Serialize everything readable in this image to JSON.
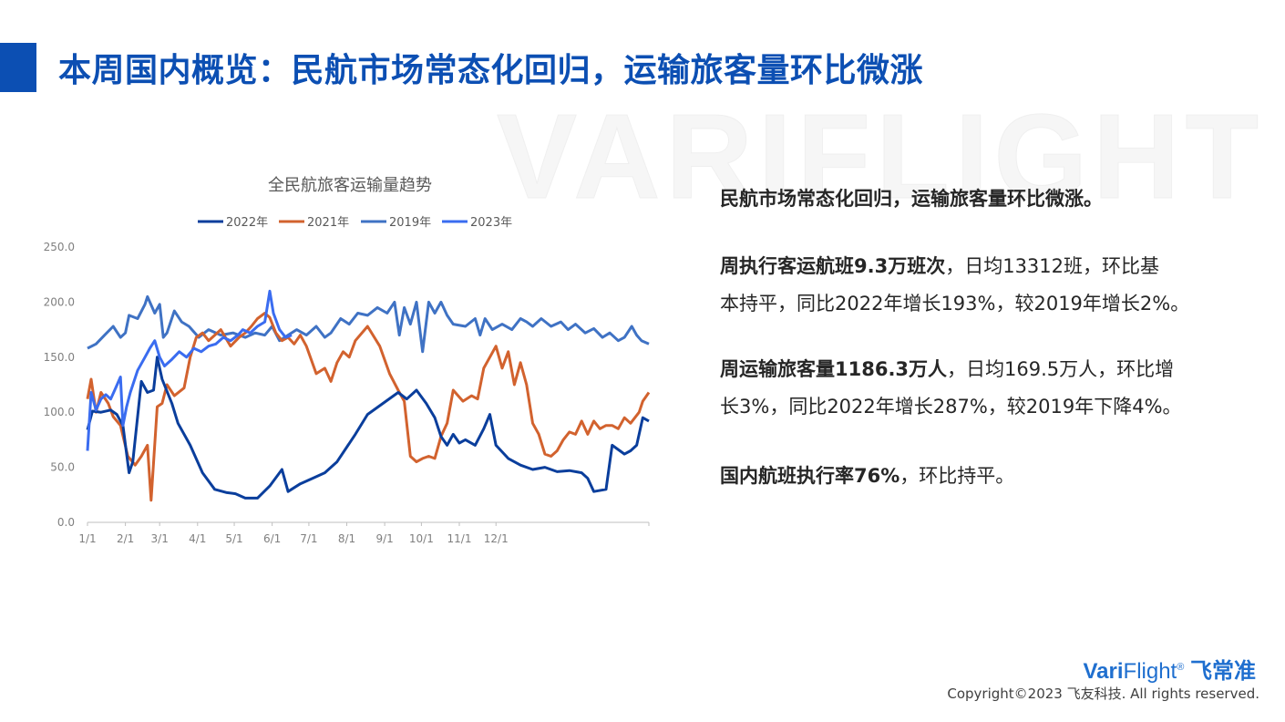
{
  "header": {
    "title": "本周国内概览：民航市场常态化回归，运输旅客量环比微涨",
    "watermark": "VARIFLIGHT"
  },
  "colors": {
    "accent": "#0c4fb3",
    "series_2022": "#0a3e9c",
    "series_2021": "#d2622e",
    "series_2019": "#3f72c4",
    "series_2023": "#3a6cf0"
  },
  "chart_data": {
    "type": "line",
    "title": "全民航旅客运输量趋势",
    "xlabel": "",
    "ylabel": "",
    "ylim": [
      0,
      250
    ],
    "yticks": [
      "250.0",
      "200.0",
      "150.0",
      "100.0",
      "50.0",
      "0.0"
    ],
    "xticks": [
      "1/1",
      "2/1",
      "3/1",
      "4/1",
      "5/1",
      "6/1",
      "7/1",
      "8/1",
      "9/1",
      "10/1",
      "11/1",
      "12/1"
    ],
    "legend_position": "top",
    "grid": false,
    "series": [
      {
        "name": "2022年",
        "color": "#0a3e9c",
        "points": [
          [
            1,
            84
          ],
          [
            5,
            101
          ],
          [
            12,
            100
          ],
          [
            20,
            102
          ],
          [
            25,
            98
          ],
          [
            30,
            88
          ],
          [
            35,
            45
          ],
          [
            38,
            55
          ],
          [
            45,
            128
          ],
          [
            50,
            118
          ],
          [
            55,
            120
          ],
          [
            58,
            150
          ],
          [
            62,
            130
          ],
          [
            70,
            108
          ],
          [
            75,
            90
          ],
          [
            85,
            70
          ],
          [
            95,
            45
          ],
          [
            105,
            30
          ],
          [
            115,
            27
          ],
          [
            122,
            26
          ],
          [
            130,
            22
          ],
          [
            140,
            22
          ],
          [
            150,
            33
          ],
          [
            160,
            48
          ],
          [
            165,
            28
          ],
          [
            175,
            35
          ],
          [
            185,
            40
          ],
          [
            195,
            45
          ],
          [
            205,
            55
          ],
          [
            220,
            80
          ],
          [
            230,
            98
          ],
          [
            245,
            110
          ],
          [
            255,
            118
          ],
          [
            262,
            112
          ],
          [
            270,
            120
          ],
          [
            278,
            108
          ],
          [
            285,
            95
          ],
          [
            290,
            78
          ],
          [
            295,
            70
          ],
          [
            300,
            80
          ],
          [
            305,
            72
          ],
          [
            310,
            75
          ],
          [
            318,
            70
          ],
          [
            325,
            85
          ],
          [
            330,
            98
          ],
          [
            335,
            70
          ],
          [
            345,
            58
          ],
          [
            355,
            52
          ],
          [
            365,
            48
          ],
          [
            375,
            50
          ],
          [
            385,
            46
          ],
          [
            395,
            47
          ],
          [
            405,
            45
          ],
          [
            410,
            40
          ],
          [
            415,
            28
          ],
          [
            425,
            30
          ],
          [
            430,
            70
          ],
          [
            440,
            62
          ],
          [
            445,
            65
          ],
          [
            450,
            70
          ],
          [
            455,
            95
          ],
          [
            460,
            92
          ]
        ]
      },
      {
        "name": "2021年",
        "color": "#d2622e",
        "points": [
          [
            1,
            112
          ],
          [
            4,
            130
          ],
          [
            8,
            100
          ],
          [
            12,
            118
          ],
          [
            18,
            108
          ],
          [
            22,
            96
          ],
          [
            28,
            88
          ],
          [
            34,
            60
          ],
          [
            40,
            52
          ],
          [
            45,
            60
          ],
          [
            50,
            70
          ],
          [
            53,
            20
          ],
          [
            58,
            105
          ],
          [
            62,
            108
          ],
          [
            66,
            125
          ],
          [
            72,
            115
          ],
          [
            80,
            122
          ],
          [
            85,
            150
          ],
          [
            90,
            168
          ],
          [
            95,
            172
          ],
          [
            100,
            165
          ],
          [
            110,
            175
          ],
          [
            118,
            160
          ],
          [
            125,
            168
          ],
          [
            130,
            172
          ],
          [
            135,
            178
          ],
          [
            140,
            185
          ],
          [
            146,
            190
          ],
          [
            150,
            186
          ],
          [
            155,
            172
          ],
          [
            160,
            165
          ],
          [
            165,
            168
          ],
          [
            170,
            162
          ],
          [
            175,
            170
          ],
          [
            180,
            160
          ],
          [
            188,
            135
          ],
          [
            195,
            140
          ],
          [
            200,
            128
          ],
          [
            205,
            145
          ],
          [
            210,
            155
          ],
          [
            215,
            150
          ],
          [
            220,
            165
          ],
          [
            230,
            178
          ],
          [
            240,
            160
          ],
          [
            248,
            135
          ],
          [
            255,
            120
          ],
          [
            260,
            110
          ],
          [
            265,
            60
          ],
          [
            270,
            55
          ],
          [
            275,
            58
          ],
          [
            280,
            60
          ],
          [
            285,
            58
          ],
          [
            290,
            78
          ],
          [
            295,
            90
          ],
          [
            300,
            120
          ],
          [
            308,
            110
          ],
          [
            315,
            115
          ],
          [
            320,
            112
          ],
          [
            325,
            140
          ],
          [
            330,
            150
          ],
          [
            335,
            160
          ],
          [
            340,
            140
          ],
          [
            345,
            155
          ],
          [
            350,
            125
          ],
          [
            355,
            145
          ],
          [
            360,
            125
          ],
          [
            365,
            90
          ],
          [
            370,
            80
          ],
          [
            375,
            62
          ],
          [
            380,
            60
          ],
          [
            385,
            65
          ],
          [
            390,
            75
          ],
          [
            395,
            82
          ],
          [
            400,
            80
          ],
          [
            405,
            92
          ],
          [
            410,
            80
          ],
          [
            415,
            92
          ],
          [
            420,
            85
          ],
          [
            425,
            88
          ],
          [
            430,
            88
          ],
          [
            435,
            85
          ],
          [
            440,
            95
          ],
          [
            445,
            90
          ],
          [
            452,
            100
          ],
          [
            455,
            110
          ],
          [
            460,
            118
          ]
        ]
      },
      {
        "name": "2019年",
        "color": "#3f72c4",
        "points": [
          [
            1,
            158
          ],
          [
            8,
            162
          ],
          [
            15,
            170
          ],
          [
            22,
            178
          ],
          [
            28,
            168
          ],
          [
            32,
            172
          ],
          [
            35,
            188
          ],
          [
            42,
            185
          ],
          [
            48,
            198
          ],
          [
            50,
            205
          ],
          [
            56,
            190
          ],
          [
            60,
            198
          ],
          [
            63,
            168
          ],
          [
            66,
            172
          ],
          [
            72,
            192
          ],
          [
            78,
            182
          ],
          [
            84,
            178
          ],
          [
            92,
            168
          ],
          [
            100,
            175
          ],
          [
            110,
            170
          ],
          [
            120,
            172
          ],
          [
            130,
            168
          ],
          [
            138,
            172
          ],
          [
            146,
            170
          ],
          [
            152,
            178
          ],
          [
            158,
            165
          ],
          [
            165,
            170
          ],
          [
            172,
            175
          ],
          [
            180,
            170
          ],
          [
            188,
            178
          ],
          [
            195,
            168
          ],
          [
            200,
            172
          ],
          [
            208,
            185
          ],
          [
            215,
            180
          ],
          [
            222,
            190
          ],
          [
            230,
            188
          ],
          [
            238,
            195
          ],
          [
            246,
            190
          ],
          [
            252,
            200
          ],
          [
            256,
            170
          ],
          [
            260,
            195
          ],
          [
            265,
            180
          ],
          [
            270,
            200
          ],
          [
            275,
            155
          ],
          [
            280,
            200
          ],
          [
            285,
            190
          ],
          [
            290,
            200
          ],
          [
            295,
            188
          ],
          [
            300,
            180
          ],
          [
            310,
            178
          ],
          [
            318,
            185
          ],
          [
            322,
            170
          ],
          [
            326,
            185
          ],
          [
            332,
            175
          ],
          [
            340,
            180
          ],
          [
            348,
            175
          ],
          [
            355,
            185
          ],
          [
            360,
            182
          ],
          [
            365,
            178
          ],
          [
            372,
            185
          ],
          [
            380,
            178
          ],
          [
            388,
            182
          ],
          [
            394,
            175
          ],
          [
            400,
            180
          ],
          [
            408,
            172
          ],
          [
            415,
            176
          ],
          [
            422,
            168
          ],
          [
            428,
            172
          ],
          [
            435,
            165
          ],
          [
            440,
            168
          ],
          [
            446,
            178
          ],
          [
            450,
            170
          ],
          [
            454,
            165
          ],
          [
            460,
            162
          ]
        ]
      },
      {
        "name": "2023年",
        "color": "#3a6cf0",
        "points": [
          [
            1,
            65
          ],
          [
            4,
            118
          ],
          [
            8,
            102
          ],
          [
            12,
            112
          ],
          [
            16,
            116
          ],
          [
            20,
            112
          ],
          [
            24,
            122
          ],
          [
            28,
            132
          ],
          [
            30,
            88
          ],
          [
            33,
            105
          ],
          [
            36,
            118
          ],
          [
            42,
            138
          ],
          [
            48,
            150
          ],
          [
            52,
            158
          ],
          [
            56,
            165
          ],
          [
            60,
            150
          ],
          [
            64,
            142
          ],
          [
            70,
            148
          ],
          [
            76,
            155
          ],
          [
            82,
            150
          ],
          [
            88,
            158
          ],
          [
            94,
            155
          ],
          [
            100,
            160
          ],
          [
            106,
            162
          ],
          [
            112,
            168
          ],
          [
            118,
            165
          ],
          [
            124,
            170
          ],
          [
            128,
            175
          ],
          [
            134,
            172
          ],
          [
            140,
            178
          ],
          [
            146,
            182
          ],
          [
            150,
            210
          ],
          [
            153,
            190
          ],
          [
            158,
            175
          ],
          [
            163,
            168
          ],
          [
            168,
            170
          ]
        ]
      }
    ]
  },
  "panel": {
    "headline": "民航市场常态化回归，运输旅客量环比微涨。",
    "p1_bold": "周执行客运航班9.3万班次",
    "p1_line1_rest": "，日均13312班，环比基",
    "p1_line2": "本持平，同比2022年增长193%，较2019年增长2%。",
    "p2_bold": "周运输旅客量1186.3万人",
    "p2_line1_rest": "，日均169.5万人，环比增",
    "p2_line2": "长3%，同比2022年增长287%，较2019年下降4%。",
    "p3_bold": "国内航班执行率76%",
    "p3_rest": "，环比持平。"
  },
  "footer": {
    "brand_bold": "Vari",
    "brand_light": "Flight",
    "brand_mark": "®",
    "brand_cn": "飞常准",
    "copyright": "Copyright©2023 飞友科技. All rights reserved."
  }
}
